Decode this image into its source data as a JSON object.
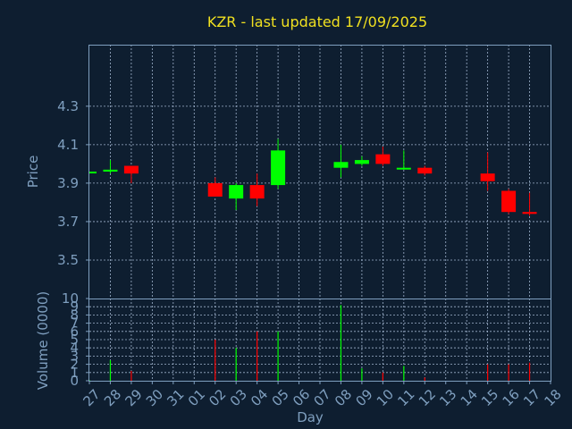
{
  "chart_data": [
    {
      "type": "candlestick",
      "title": "KZR - last updated 17/09/2025",
      "ylabel": "Price",
      "ylim": [
        3.3,
        4.62
      ],
      "yticks": [
        "3.5",
        "3.7",
        "3.9",
        "4.1",
        "4.3"
      ],
      "grid": true,
      "colors": {
        "up": "#00ff00",
        "down": "#ff0000",
        "title": "#f0e020",
        "axis": "#7f9fbf",
        "background": "#0e1e30"
      },
      "candles": [
        {
          "day": "27",
          "open": 3.96,
          "high": 3.96,
          "low": 3.95,
          "close": 3.96
        },
        {
          "day": "28",
          "open": 3.96,
          "high": 4.02,
          "low": 3.95,
          "close": 3.97
        },
        {
          "day": "29",
          "open": 3.99,
          "high": 3.99,
          "low": 3.9,
          "close": 3.95
        },
        {
          "day": "02",
          "open": 3.9,
          "high": 3.93,
          "low": 3.83,
          "close": 3.83
        },
        {
          "day": "03",
          "open": 3.82,
          "high": 3.9,
          "low": 3.76,
          "close": 3.89
        },
        {
          "day": "04",
          "open": 3.89,
          "high": 3.95,
          "low": 3.78,
          "close": 3.82
        },
        {
          "day": "05",
          "open": 3.89,
          "high": 4.13,
          "low": 3.87,
          "close": 4.07
        },
        {
          "day": "08",
          "open": 3.98,
          "high": 4.1,
          "low": 3.93,
          "close": 4.01
        },
        {
          "day": "09",
          "open": 4.0,
          "high": 4.04,
          "low": 3.99,
          "close": 4.02
        },
        {
          "day": "10",
          "open": 4.05,
          "high": 4.09,
          "low": 3.99,
          "close": 4.0
        },
        {
          "day": "11",
          "open": 3.98,
          "high": 4.07,
          "low": 3.97,
          "close": 3.98
        },
        {
          "day": "12",
          "open": 3.98,
          "high": 3.99,
          "low": 3.94,
          "close": 3.95
        },
        {
          "day": "15",
          "open": 3.95,
          "high": 4.06,
          "low": 3.86,
          "close": 3.91
        },
        {
          "day": "16",
          "open": 3.86,
          "high": 3.87,
          "low": 3.74,
          "close": 3.75
        },
        {
          "day": "17",
          "open": 3.75,
          "high": 3.85,
          "low": 3.73,
          "close": 3.74
        }
      ]
    },
    {
      "type": "bar",
      "ylabel": "Volume (0000)",
      "xlabel": "Day",
      "ylim": [
        0,
        10
      ],
      "yticks": [
        "0",
        "1",
        "2",
        "3",
        "4",
        "5",
        "6",
        "7",
        "8",
        "9",
        "10"
      ],
      "categories": [
        "27",
        "28",
        "29",
        "30",
        "31",
        "01",
        "02",
        "03",
        "04",
        "05",
        "06",
        "07",
        "08",
        "09",
        "10",
        "11",
        "12",
        "13",
        "14",
        "15",
        "16",
        "17",
        "18"
      ],
      "volumes": [
        {
          "day": "27",
          "value": 0.1,
          "direction": "up"
        },
        {
          "day": "28",
          "value": 2.5,
          "direction": "up"
        },
        {
          "day": "29",
          "value": 1.2,
          "direction": "down"
        },
        {
          "day": "02",
          "value": 5.0,
          "direction": "down"
        },
        {
          "day": "03",
          "value": 4.0,
          "direction": "up"
        },
        {
          "day": "04",
          "value": 6.0,
          "direction": "down"
        },
        {
          "day": "05",
          "value": 6.0,
          "direction": "up"
        },
        {
          "day": "08",
          "value": 9.2,
          "direction": "up"
        },
        {
          "day": "09",
          "value": 1.5,
          "direction": "up"
        },
        {
          "day": "10",
          "value": 1.0,
          "direction": "down"
        },
        {
          "day": "11",
          "value": 1.8,
          "direction": "up"
        },
        {
          "day": "12",
          "value": 0.4,
          "direction": "down"
        },
        {
          "day": "15",
          "value": 2.0,
          "direction": "down"
        },
        {
          "day": "16",
          "value": 2.0,
          "direction": "down"
        },
        {
          "day": "17",
          "value": 2.2,
          "direction": "down"
        }
      ]
    }
  ]
}
